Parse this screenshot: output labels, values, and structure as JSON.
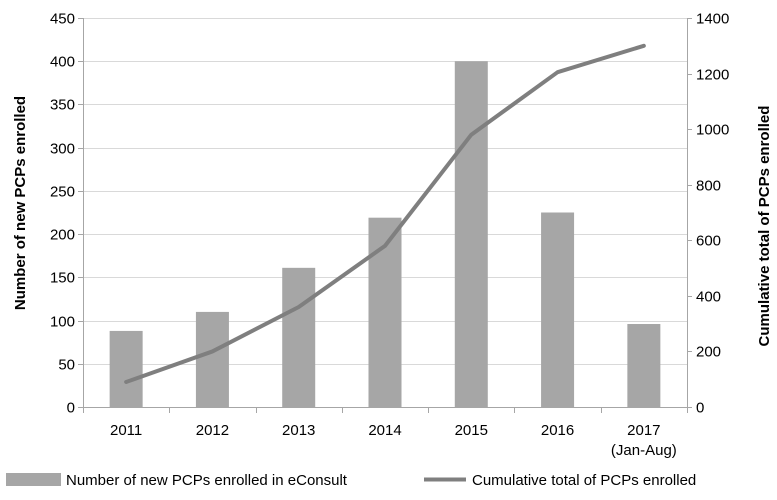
{
  "chart_data": {
    "type": "bar",
    "categories": [
      "2011",
      "2012",
      "2013",
      "2014",
      "2015",
      "2016",
      "2017"
    ],
    "category_sublabels": [
      "",
      "",
      "",
      "",
      "",
      "",
      "(Jan-Aug)"
    ],
    "series": [
      {
        "name": "Number of new PCPs enrolled in eConsult",
        "type": "bar",
        "axis": "left",
        "color": "#a6a6a6",
        "values": [
          88,
          110,
          161,
          219,
          400,
          225,
          96
        ]
      },
      {
        "name": "Cumulative total of PCPs enrolled",
        "type": "line",
        "axis": "right",
        "color": "#7f7f7f",
        "values": [
          90,
          200,
          360,
          580,
          980,
          1205,
          1300
        ]
      }
    ],
    "ylabel_left": "Number of new PCPs enrolled",
    "ylabel_right": "Cumulative total of PCPs enrolled",
    "ylim_left": [
      0,
      450
    ],
    "ylim_right": [
      0,
      1400
    ],
    "yticks_left": [
      0,
      50,
      100,
      150,
      200,
      250,
      300,
      350,
      400,
      450
    ],
    "yticks_right": [
      0,
      200,
      400,
      600,
      800,
      1000,
      1200,
      1400
    ],
    "grid": true,
    "legend_position": "bottom"
  }
}
